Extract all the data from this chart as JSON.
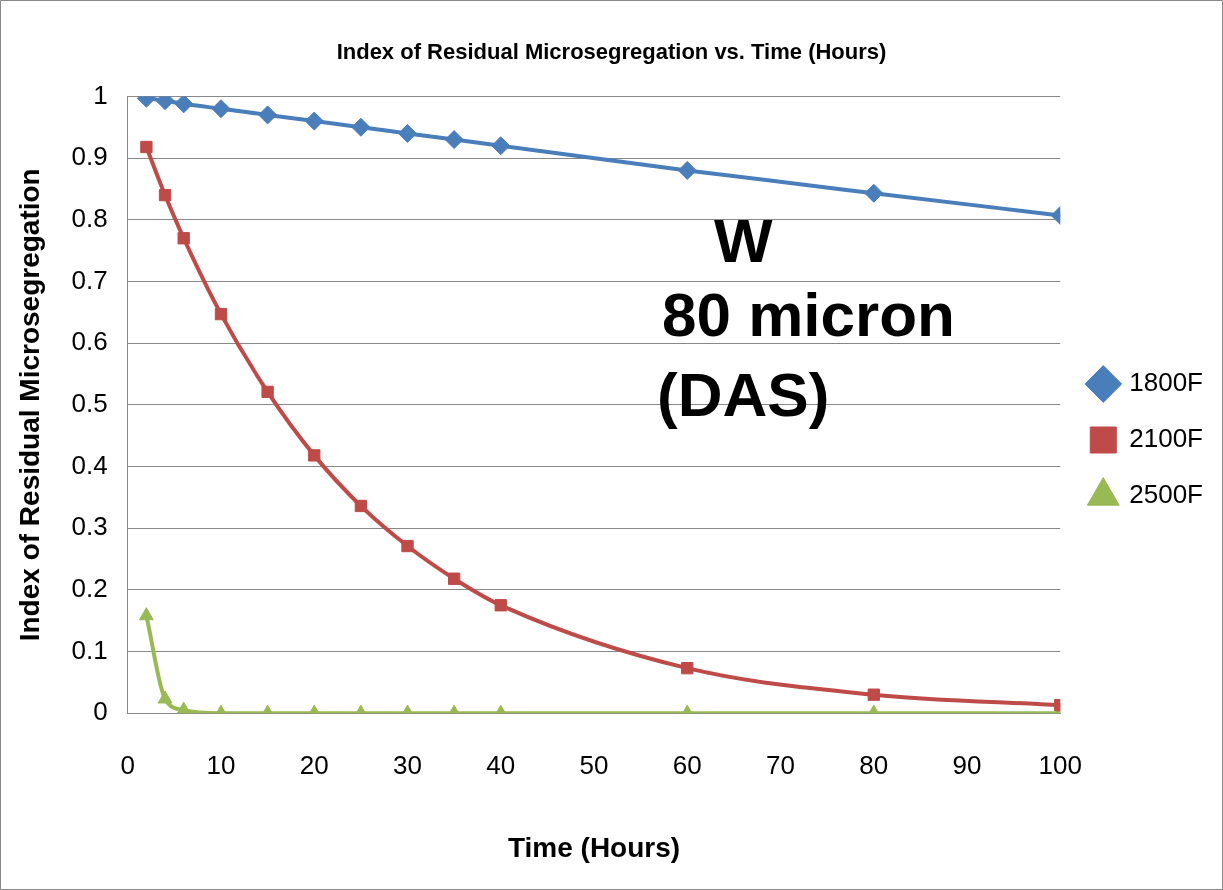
{
  "chart_data": {
    "type": "line",
    "title": "Index of Residual Microsegregation vs. Time (Hours)",
    "xlabel": "Time (Hours)",
    "ylabel": "Index of Residual Microsegregation",
    "annotations": [
      "W",
      "80 micron",
      "(DAS)"
    ],
    "x": [
      2,
      4,
      6,
      10,
      15,
      20,
      25,
      30,
      35,
      40,
      60,
      80,
      100
    ],
    "series": [
      {
        "name": "1800F",
        "color": "#4a7ebb",
        "marker": "diamond",
        "values": [
          0.997,
          0.993,
          0.988,
          0.98,
          0.97,
          0.96,
          0.95,
          0.94,
          0.93,
          0.92,
          0.88,
          0.843,
          0.807
        ]
      },
      {
        "name": "2100F",
        "color": "#be4b48",
        "marker": "square",
        "values": [
          0.918,
          0.84,
          0.77,
          0.647,
          0.521,
          0.418,
          0.336,
          0.271,
          0.218,
          0.175,
          0.073,
          0.03,
          0.013
        ]
      },
      {
        "name": "2500F",
        "color": "#98b954",
        "marker": "triangle",
        "values": [
          0.158,
          0.023,
          0.005,
          0,
          0,
          0,
          0,
          0,
          0,
          0,
          0,
          0,
          0
        ]
      }
    ],
    "xlim": [
      0,
      100
    ],
    "xticks": [
      0,
      10,
      20,
      30,
      40,
      50,
      60,
      70,
      80,
      90,
      100
    ],
    "ylim": [
      0,
      1
    ],
    "yticks": [
      0,
      0.1,
      0.2,
      0.3,
      0.4,
      0.5,
      0.6,
      0.7,
      0.8,
      0.9,
      1
    ],
    "grid": "y",
    "legend": "right",
    "line_style": "solid"
  }
}
